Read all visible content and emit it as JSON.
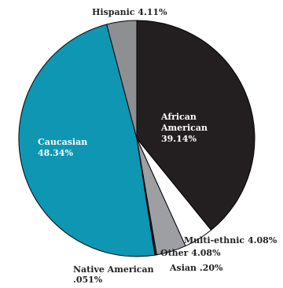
{
  "chart_data": {
    "type": "pie",
    "start_angle_deg": 0,
    "direction": "clockwise",
    "slices": [
      {
        "label": "African American 39.14%",
        "lines": [
          "African",
          "American",
          "39.14%"
        ],
        "value": 39.14,
        "color": "#231f20",
        "label_inside": true
      },
      {
        "label": "Multi-ethnic 4.08%",
        "lines": [
          "Multi-ethnic 4.08%"
        ],
        "value": 4.08,
        "color": "#ffffff",
        "label_inside": false
      },
      {
        "label": "Other 4.08%",
        "lines": [
          "Other 4.08%"
        ],
        "value": 4.08,
        "color": "#9d9fa2",
        "label_inside": false
      },
      {
        "label": "Asian .20%",
        "lines": [
          "Asian .20%"
        ],
        "value": 0.2,
        "color": "#3d3d3d",
        "label_inside": false
      },
      {
        "label": "Native American .051%",
        "lines": [
          "Native American",
          ".051%"
        ],
        "value": 0.051,
        "color": "#1b6e86",
        "label_inside": false
      },
      {
        "label": "Caucasian 48.34%",
        "lines": [
          "Caucasian",
          "48.34%"
        ],
        "value": 48.34,
        "color": "#0e96b3",
        "label_inside": true
      },
      {
        "label": "Hispanic 4.11%",
        "lines": [
          "Hispanic 4.11%"
        ],
        "value": 4.11,
        "color": "#8d8f91",
        "label_inside": false
      }
    ],
    "stroke_color": "#000000"
  }
}
